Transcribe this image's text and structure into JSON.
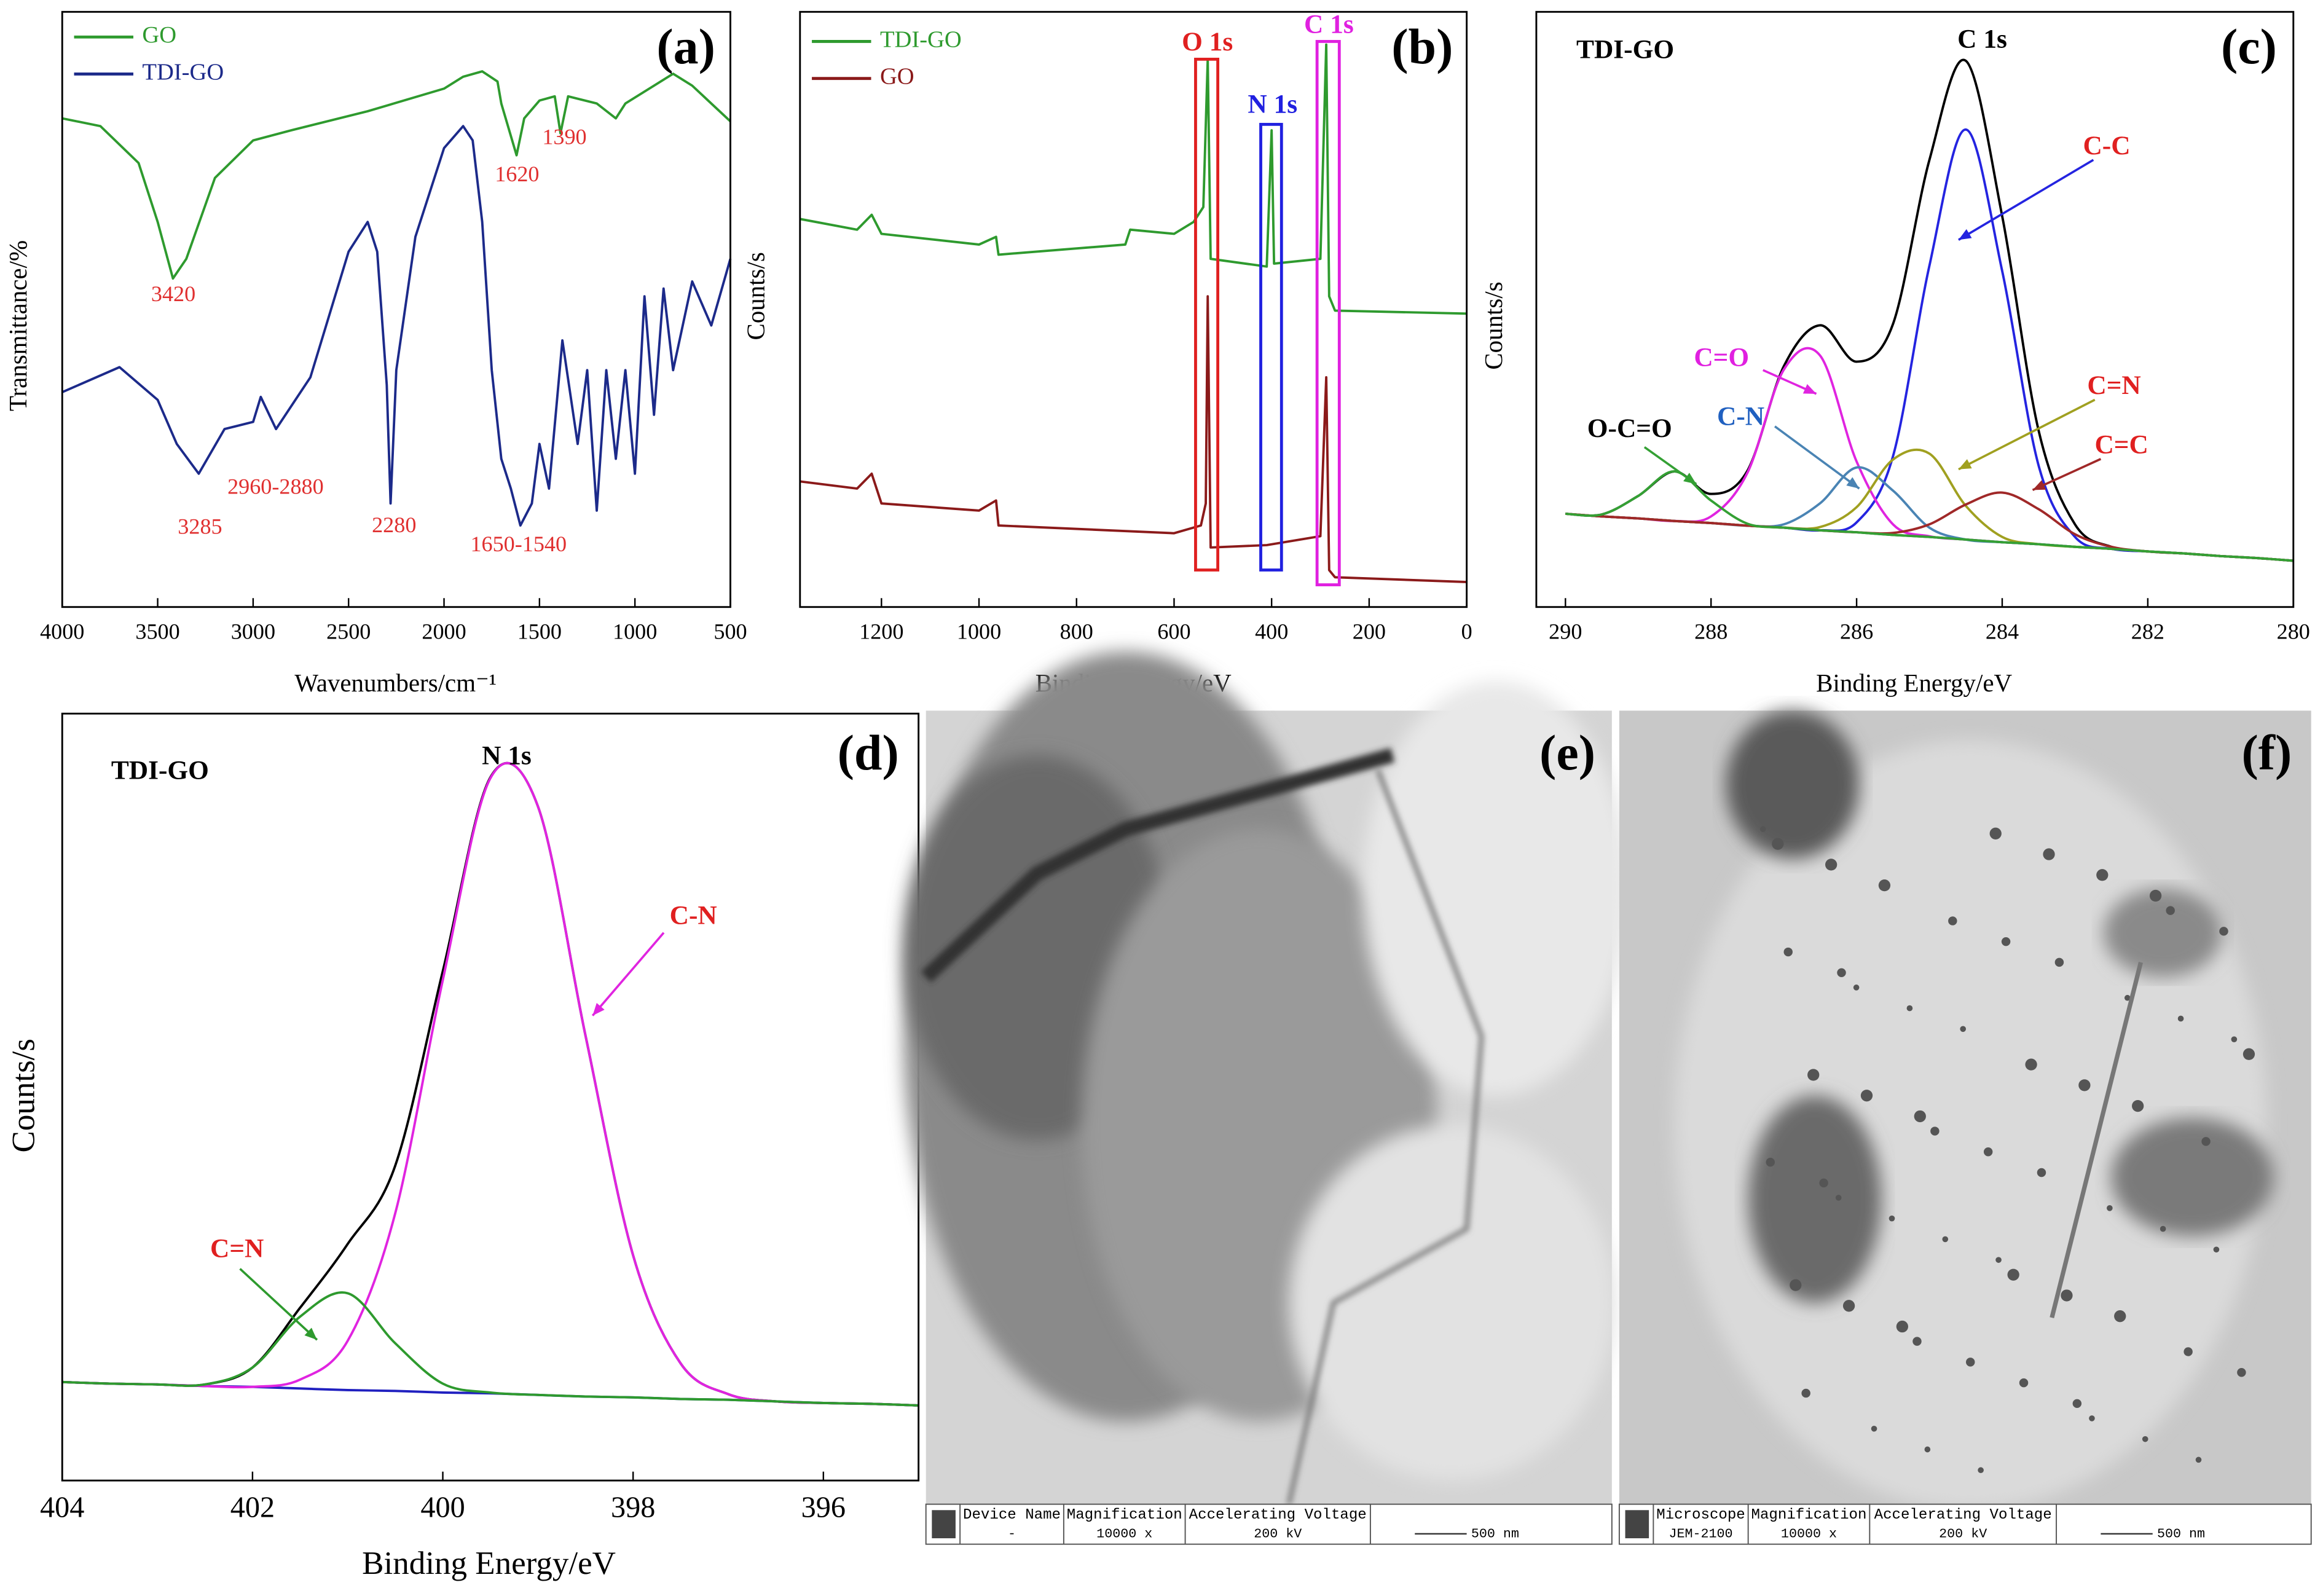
{
  "chart_data": [
    {
      "type": "line",
      "label": "(a)",
      "xlabel": "Wavenumbers/cm⁻¹",
      "ylabel": "Transmittance/%",
      "xlim": [
        4000,
        500
      ],
      "xticks": [
        4000,
        3500,
        3000,
        2500,
        2000,
        1500,
        1000,
        500
      ],
      "ylim": [
        0,
        100
      ],
      "series": [
        {
          "name": "GO",
          "color": "#2e9a2e",
          "x": [
            4000,
            3800,
            3600,
            3500,
            3420,
            3350,
            3200,
            3000,
            2800,
            2400,
            2000,
            1900,
            1800,
            1720,
            1700,
            1620,
            1580,
            1500,
            1420,
            1390,
            1350,
            1200,
            1100,
            1050,
            900,
            800,
            700,
            600,
            500
          ],
          "values": [
            82.1,
            80.8,
            74.6,
            64.7,
            55.2,
            58.5,
            72.1,
            78.4,
            80.1,
            83.3,
            87.1,
            89.1,
            90.0,
            88.3,
            84.6,
            75.9,
            82.1,
            85.1,
            85.8,
            79.6,
            85.8,
            84.6,
            82.1,
            84.6,
            87.6,
            89.6,
            87.6,
            84.6,
            81.6
          ]
        },
        {
          "name": "TDI-GO",
          "color": "#1c2a8a",
          "x": [
            4000,
            3700,
            3500,
            3400,
            3285,
            3150,
            3000,
            2960,
            2880,
            2700,
            2500,
            2400,
            2350,
            2300,
            2280,
            2250,
            2150,
            2000,
            1900,
            1850,
            1800,
            1750,
            1700,
            1650,
            1600,
            1540,
            1500,
            1450,
            1380,
            1300,
            1250,
            1200,
            1150,
            1100,
            1050,
            1000,
            950,
            900,
            850,
            800,
            700,
            600,
            500
          ],
          "values": [
            36.1,
            40.3,
            34.8,
            27.4,
            22.4,
            29.9,
            31.1,
            35.3,
            29.9,
            38.6,
            59.7,
            64.7,
            59.7,
            37.3,
            17.4,
            39.8,
            62.2,
            77.1,
            80.8,
            78.4,
            64.7,
            39.8,
            24.9,
            19.9,
            13.7,
            17.4,
            27.4,
            19.9,
            44.8,
            27.4,
            39.8,
            16.2,
            39.8,
            24.9,
            39.8,
            22.4,
            52.2,
            32.3,
            53.5,
            39.8,
            54.7,
            47.3,
            58.5
          ]
        }
      ],
      "annotations": [
        "3420",
        "1620",
        "1390",
        "3285",
        "2960-2880",
        "2280",
        "1650-1540"
      ]
    },
    {
      "type": "line",
      "label": "(b)",
      "xlabel": "Binding Energy/eV",
      "ylabel": "Counts/s",
      "xlim": [
        1367,
        0
      ],
      "xticks": [
        1200,
        1000,
        800,
        600,
        400,
        200,
        0
      ],
      "ylim": [
        0,
        100
      ],
      "series": [
        {
          "name": "TDI-GO",
          "color": "#2e9a2e",
          "x": [
            1367,
            1250,
            1220,
            1200,
            1000,
            965,
            960,
            700,
            690,
            600,
            560,
            540,
            531,
            525,
            410,
            400,
            395,
            300,
            288,
            282,
            270,
            0
          ],
          "values": [
            65.2,
            63.4,
            65.9,
            62.7,
            60.9,
            62.2,
            59.2,
            60.9,
            63.4,
            62.7,
            64.7,
            67.2,
            92.0,
            58.5,
            57.2,
            80.1,
            57.7,
            58.5,
            94.5,
            52.2,
            49.8,
            49.3
          ]
        },
        {
          "name": "GO",
          "color": "#8b1a1a",
          "x": [
            1367,
            1250,
            1220,
            1200,
            1000,
            965,
            960,
            600,
            545,
            535,
            531,
            525,
            410,
            300,
            288,
            282,
            270,
            0
          ],
          "values": [
            21.1,
            19.9,
            22.4,
            17.4,
            16.2,
            17.9,
            13.7,
            12.4,
            13.7,
            17.4,
            52.2,
            10.0,
            10.4,
            11.9,
            38.6,
            6.2,
            5.0,
            4.2
          ]
        }
      ],
      "annotations": [
        "O 1s",
        "N 1s",
        "C 1s"
      ]
    },
    {
      "type": "line",
      "label": "(c)",
      "xlabel": "Binding Energy/eV",
      "ylabel": "Counts/s",
      "xlim": [
        290.4,
        280
      ],
      "xticks": [
        290,
        288,
        286,
        284,
        282,
        280
      ],
      "ylim": [
        0,
        90
      ],
      "x": [
        290,
        289.5,
        289,
        288.5,
        288,
        287.5,
        287,
        286.5,
        286,
        285.5,
        285,
        284.5,
        284,
        283.5,
        283,
        282.5,
        282,
        281.5,
        281,
        280.5,
        280
      ],
      "series": [
        {
          "color": "#206020",
          "values": [
            14.1,
            13.7,
            13.4,
            13.0,
            12.7,
            12.3,
            12.0,
            11.6,
            11.3,
            10.9,
            10.6,
            10.2,
            9.8,
            9.5,
            9.1,
            8.8,
            8.4,
            8.1,
            7.7,
            7.4,
            7.0
          ]
        },
        {
          "color": "#000000",
          "values": [
            14.1,
            14.0,
            16.8,
            20.5,
            17.1,
            20.6,
            36.4,
            42.6,
            37.1,
            42.8,
            67.6,
            82.6,
            59.1,
            26.7,
            12.5,
            9.1,
            8.4,
            8.1,
            7.7,
            7.4,
            7.0
          ]
        },
        {
          "color": "#2424e0",
          "values": [
            14.1,
            13.7,
            13.4,
            13.0,
            12.7,
            12.3,
            12.0,
            11.6,
            12.8,
            22.8,
            51.6,
            72.2,
            50.8,
            21.4,
            10.6,
            8.8,
            8.4,
            8.1,
            7.7,
            7.4,
            7.0
          ]
        },
        {
          "color": "#e024e0",
          "values": [
            14.1,
            13.7,
            13.4,
            13.0,
            13.7,
            20.3,
            35.9,
            38.0,
            22.0,
            12.5,
            10.7,
            10.2,
            9.8,
            9.5,
            9.1,
            8.8,
            8.4,
            8.1,
            7.7,
            7.4,
            7.0
          ]
        },
        {
          "color": "#4a84b4",
          "values": [
            14.1,
            13.7,
            13.4,
            13.0,
            12.7,
            12.3,
            12.5,
            15.7,
            21.1,
            17.6,
            12.0,
            10.2,
            9.8,
            9.5,
            9.1,
            8.8,
            8.4,
            8.1,
            7.7,
            7.4,
            7.0
          ]
        },
        {
          "color": "#a0a020",
          "values": [
            14.1,
            13.7,
            13.4,
            13.0,
            12.7,
            12.3,
            12.0,
            12.1,
            15.1,
            22.3,
            23.2,
            15.3,
            10.6,
            9.5,
            9.1,
            8.8,
            8.4,
            8.1,
            7.7,
            7.4,
            7.0
          ]
        },
        {
          "color": "#a02828",
          "values": [
            14.1,
            13.7,
            13.4,
            13.0,
            12.7,
            12.3,
            12.0,
            11.6,
            11.3,
            11.2,
            12.5,
            15.5,
            17.3,
            14.8,
            11.0,
            9.1,
            8.4,
            8.1,
            7.7,
            7.4,
            7.0
          ]
        },
        {
          "color": "#34a034",
          "values": [
            14.1,
            14.0,
            16.8,
            20.5,
            16.1,
            12.6,
            12.0,
            11.6,
            11.3,
            10.9,
            10.6,
            10.2,
            9.8,
            9.5,
            9.1,
            8.8,
            8.4,
            8.1,
            7.7,
            7.4,
            7.0
          ]
        }
      ],
      "annotations": [
        "TDI-GO",
        "C 1s",
        "C-C",
        "C=O",
        "C-N",
        "C=N",
        "C=C",
        "O-C=O"
      ]
    },
    {
      "type": "line",
      "label": "(d)",
      "xlabel": "Binding Energy/eV",
      "ylabel": "Counts/s",
      "xlim": [
        404,
        395
      ],
      "xticks": [
        404,
        402,
        400,
        398,
        396
      ],
      "ylim": [
        0,
        95
      ],
      "x": [
        404,
        403.5,
        403,
        402.5,
        402,
        401.5,
        401,
        400.5,
        400,
        399.5,
        399,
        398.5,
        398,
        397.5,
        397,
        396.5,
        396,
        395.5,
        395
      ],
      "series": [
        {
          "color": "#2020c0",
          "values": [
            12.2,
            12.0,
            11.9,
            11.7,
            11.6,
            11.4,
            11.2,
            11.1,
            10.9,
            10.8,
            10.6,
            10.4,
            10.3,
            10.1,
            10.0,
            9.8,
            9.6,
            9.5,
            9.3
          ]
        },
        {
          "color": "#000000",
          "values": [
            12.2,
            12.0,
            11.9,
            11.9,
            14.0,
            21.4,
            29.3,
            39.0,
            63.1,
            87.1,
            83.5,
            55.1,
            27.9,
            14.5,
            10.7,
            9.8,
            9.6,
            9.5,
            9.3
          ]
        },
        {
          "color": "#e024e0",
          "values": [
            12.2,
            12.0,
            11.9,
            11.7,
            11.6,
            12.5,
            17.3,
            33.1,
            62.0,
            87.0,
            83.5,
            55.1,
            27.9,
            14.5,
            10.7,
            9.8,
            9.6,
            9.5,
            9.3
          ]
        },
        {
          "color": "#2e9a2e",
          "values": [
            12.2,
            12.0,
            11.9,
            11.9,
            14.0,
            20.3,
            23.2,
            17.0,
            12.0,
            10.9,
            10.6,
            10.4,
            10.3,
            10.1,
            10.0,
            9.8,
            9.6,
            9.5,
            9.3
          ]
        }
      ],
      "annotations": [
        "TDI-GO",
        "N 1s",
        "C-N",
        "C=N"
      ]
    }
  ],
  "images": [
    {
      "label": "(e)",
      "footer": [
        "Device Name",
        "Magnification",
        "Accelerating Voltage",
        "-",
        "10000 x",
        "200 kV",
        "500 nm"
      ]
    },
    {
      "label": "(f)",
      "footer": [
        "Microscope",
        "Magnification",
        "Accelerating Voltage",
        "JEM-2100",
        "10000 x",
        "200 kV",
        "500 nm"
      ]
    }
  ]
}
